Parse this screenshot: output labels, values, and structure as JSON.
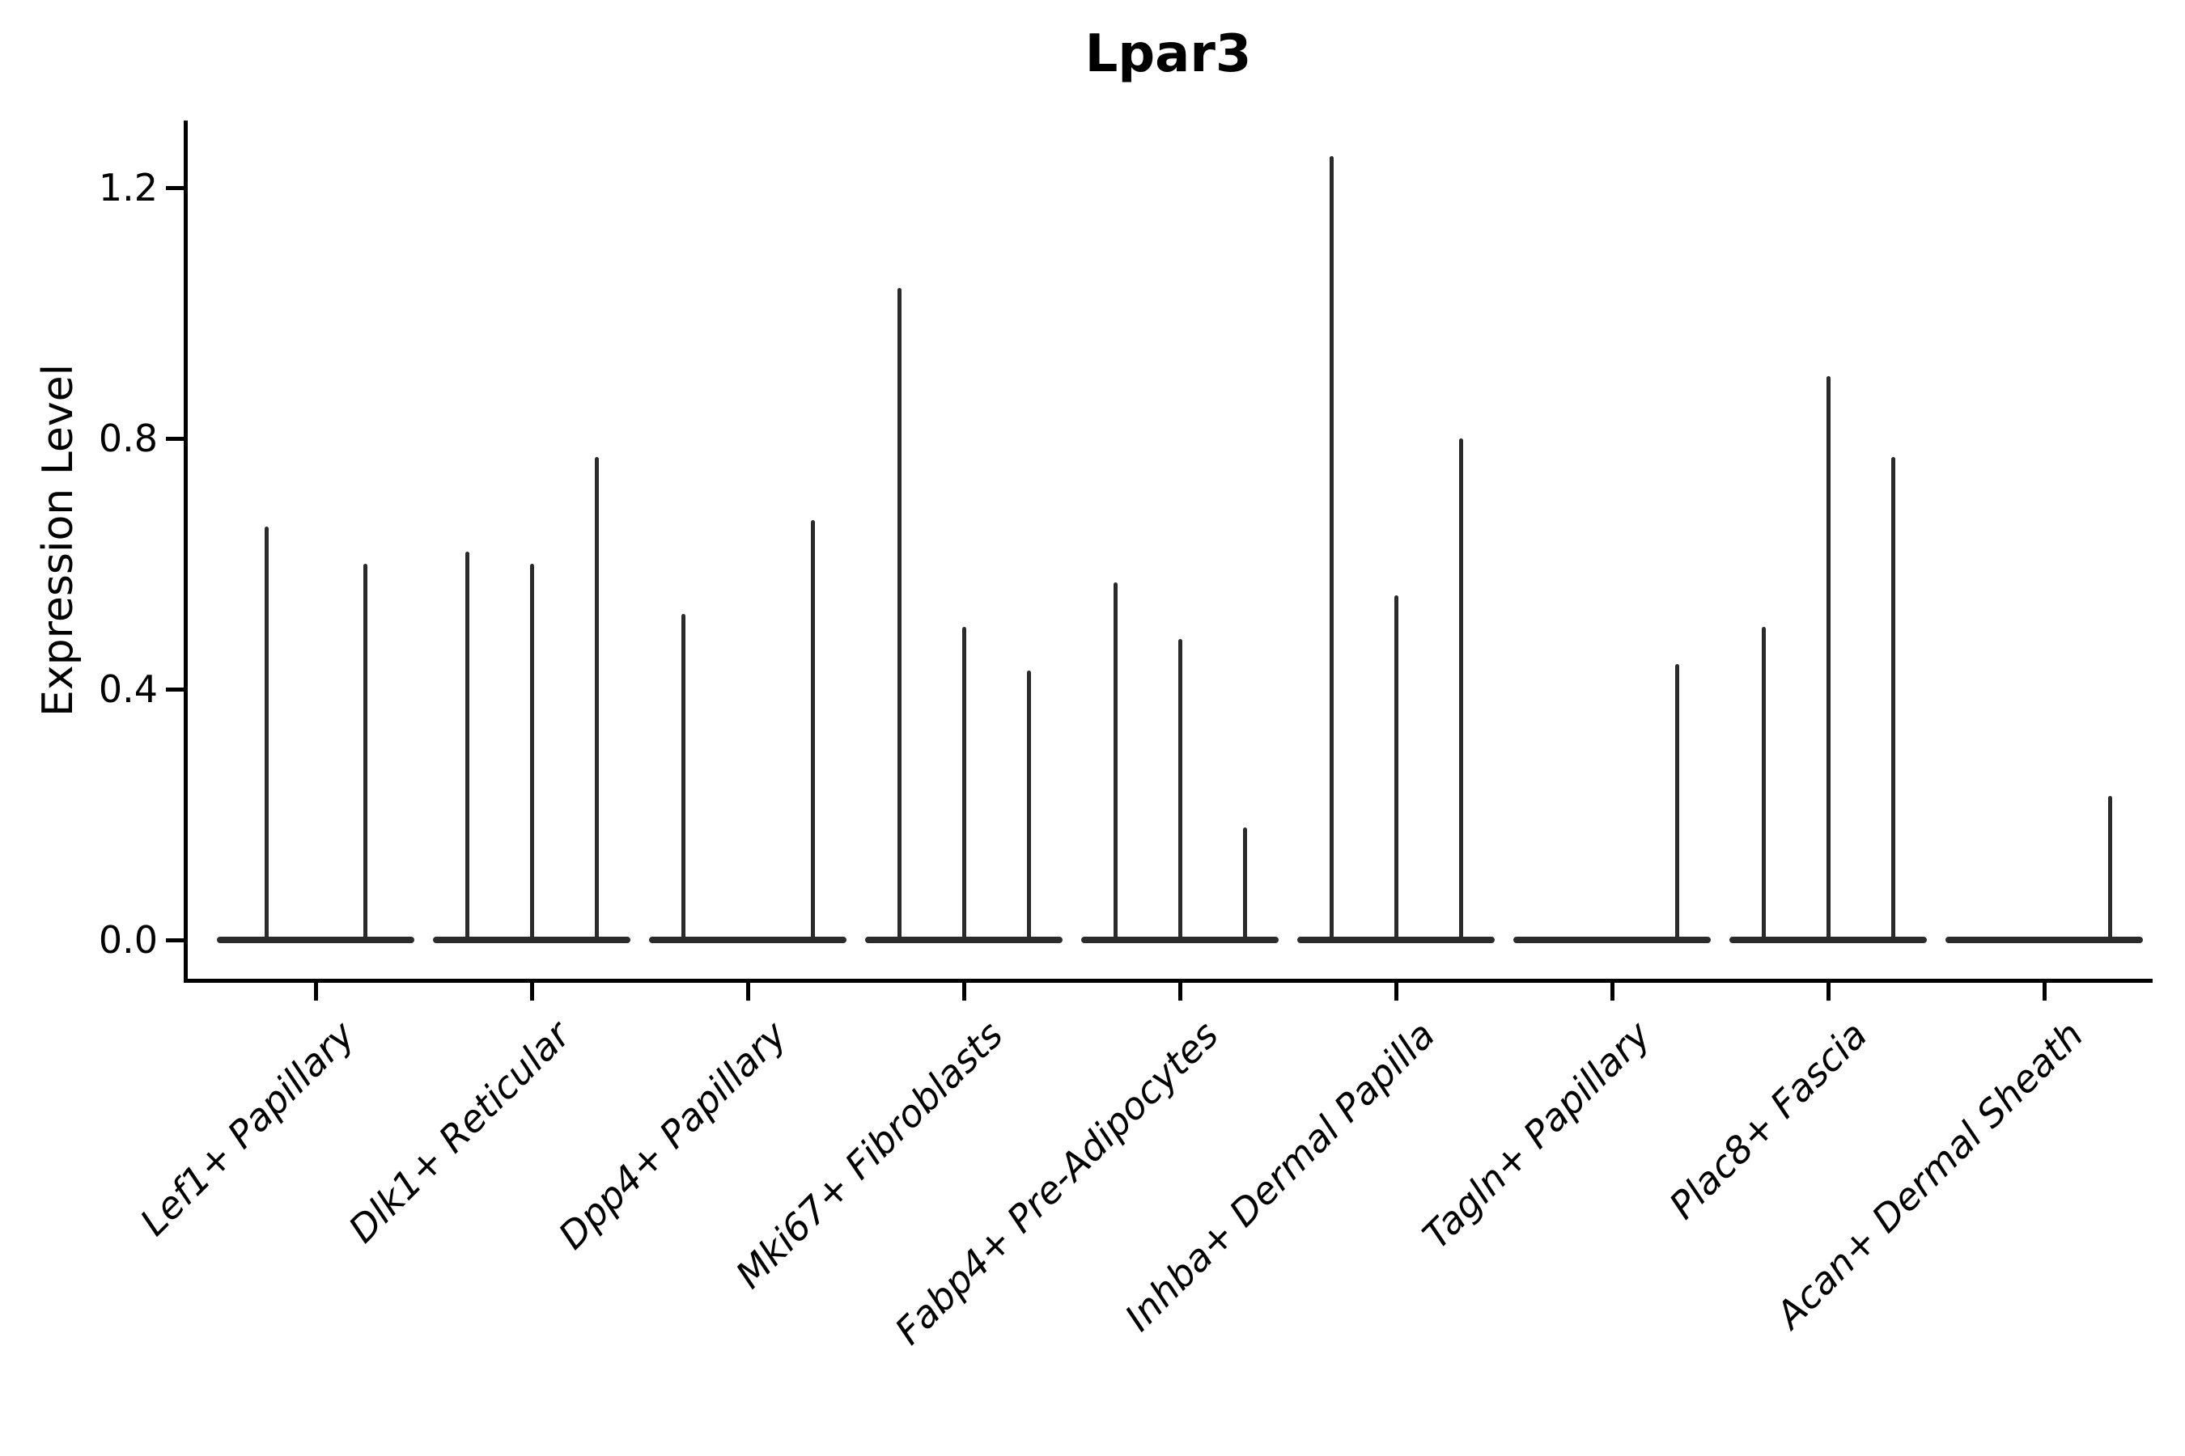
{
  "chart_data": {
    "type": "violin",
    "title": "Lpar3",
    "xlabel": "",
    "ylabel": "Expression Level",
    "yticks": [
      0.0,
      0.4,
      0.8,
      1.2
    ],
    "ytick_labels": [
      "0.0",
      "0.4",
      "0.8",
      "1.2"
    ],
    "ylim": [
      -0.07,
      1.31
    ],
    "grid": false,
    "legend_position": "none",
    "style_note": "needle-thin split violins: flat baseline at 0 per category, vertical spikes at dodged violin centers reaching max expression",
    "categories": [
      {
        "label": "Lef1+ Papillary",
        "violins": [
          {
            "offset": -61,
            "peak": 0.66
          },
          {
            "offset": 61,
            "peak": 0.6
          }
        ]
      },
      {
        "label": "Dlk1+ Reticular",
        "violins": [
          {
            "offset": -80,
            "peak": 0.62
          },
          {
            "offset": 0,
            "peak": 0.6
          },
          {
            "offset": 80,
            "peak": 0.77
          }
        ]
      },
      {
        "label": "Dpp4+ Papillary",
        "violins": [
          {
            "offset": -80,
            "peak": 0.52
          },
          {
            "offset": 80,
            "peak": 0.67
          }
        ]
      },
      {
        "label": "Mki67+ Fibroblasts",
        "violins": [
          {
            "offset": -80,
            "peak": 1.04
          },
          {
            "offset": 0,
            "peak": 0.5
          },
          {
            "offset": 80,
            "peak": 0.43
          }
        ]
      },
      {
        "label": "Fabp4+ Pre-Adipocytes",
        "violins": [
          {
            "offset": -80,
            "peak": 0.57
          },
          {
            "offset": 0,
            "peak": 0.48
          },
          {
            "offset": 80,
            "peak": 0.18
          }
        ]
      },
      {
        "label": "Inhba+ Dermal Papilla",
        "violins": [
          {
            "offset": -80,
            "peak": 1.25
          },
          {
            "offset": 0,
            "peak": 0.55
          },
          {
            "offset": 80,
            "peak": 0.8
          }
        ]
      },
      {
        "label": "Tagln+ Papillary",
        "violins": [
          {
            "offset": 80,
            "peak": 0.44
          }
        ]
      },
      {
        "label": "Plac8+ Fascia",
        "violins": [
          {
            "offset": -80,
            "peak": 0.5
          },
          {
            "offset": 0,
            "peak": 0.9
          },
          {
            "offset": 80,
            "peak": 0.77
          }
        ]
      },
      {
        "label": "Acan+ Dermal Sheath",
        "violins": [
          {
            "offset": 81,
            "peak": 0.23
          }
        ]
      }
    ],
    "colors": {
      "violin_line": "#2b2b2b",
      "axis": "#000000",
      "text": "#000000",
      "background": "#ffffff"
    }
  }
}
